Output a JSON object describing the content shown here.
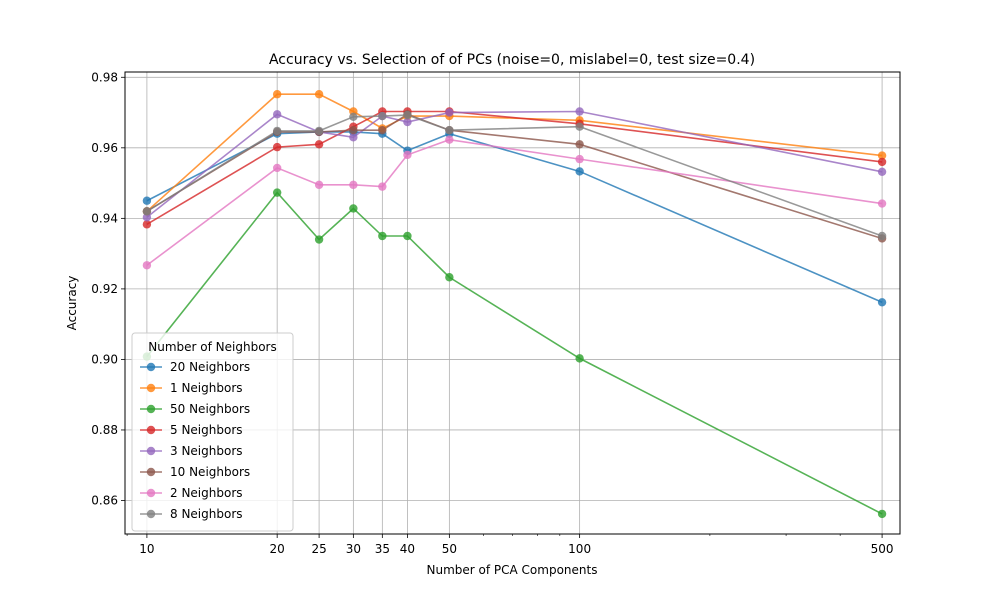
{
  "chart_data": {
    "type": "line",
    "title": "Accuracy vs. Selection of of PCs (noise=0, mislabel=0, test size=0.4)",
    "xlabel": "Number of PCA Components",
    "ylabel": "Accuracy",
    "x_scale": "log",
    "x": [
      10,
      20,
      25,
      30,
      35,
      40,
      50,
      100,
      500
    ],
    "x_tick_labels": [
      "10",
      "20",
      "25",
      "30",
      "35",
      "40",
      "50",
      "100",
      "500"
    ],
    "xlim": [
      8.9,
      550
    ],
    "ylim": [
      0.8505,
      0.9815
    ],
    "y_ticks": [
      0.86,
      0.88,
      0.9,
      0.92,
      0.94,
      0.96,
      0.98
    ],
    "y_tick_labels": [
      "0.86",
      "0.88",
      "0.90",
      "0.92",
      "0.94",
      "0.96",
      "0.98"
    ],
    "grid": true,
    "legend": {
      "title": "Number of Neighbors",
      "position": "lower-left"
    },
    "series": [
      {
        "name": "20 Neighbors",
        "color": "#1f77b4",
        "values": [
          0.945,
          0.964,
          0.9645,
          0.9645,
          0.964,
          0.9592,
          0.964,
          0.9533,
          0.9162
        ]
      },
      {
        "name": "1 Neighbors",
        "color": "#ff7f0e",
        "values": [
          0.942,
          0.9752,
          0.9752,
          0.9703,
          0.9655,
          0.969,
          0.969,
          0.9678,
          0.9578
        ]
      },
      {
        "name": "50 Neighbors",
        "color": "#2ca02c",
        "values": [
          0.9008,
          0.9473,
          0.934,
          0.9428,
          0.935,
          0.935,
          0.9233,
          0.9003,
          0.8562
        ]
      },
      {
        "name": "5 Neighbors",
        "color": "#d62728",
        "values": [
          0.9383,
          0.9602,
          0.961,
          0.966,
          0.9703,
          0.9703,
          0.9703,
          0.9668,
          0.956
        ]
      },
      {
        "name": "3 Neighbors",
        "color": "#9467bd",
        "values": [
          0.9403,
          0.9695,
          0.9645,
          0.963,
          0.969,
          0.9673,
          0.97,
          0.9703,
          0.9532
        ]
      },
      {
        "name": "10 Neighbors",
        "color": "#8c564b",
        "values": [
          0.942,
          0.9645,
          0.9645,
          0.965,
          0.965,
          0.9695,
          0.965,
          0.961,
          0.9343
        ]
      },
      {
        "name": "2 Neighbors",
        "color": "#e377c2",
        "values": [
          0.9267,
          0.9543,
          0.9495,
          0.9495,
          0.949,
          0.958,
          0.9623,
          0.9568,
          0.9442
        ]
      },
      {
        "name": "8 Neighbors",
        "color": "#7f7f7f",
        "values": [
          0.942,
          0.9648,
          0.9648,
          0.9688,
          0.969,
          0.9693,
          0.965,
          0.966,
          0.935
        ]
      }
    ]
  }
}
